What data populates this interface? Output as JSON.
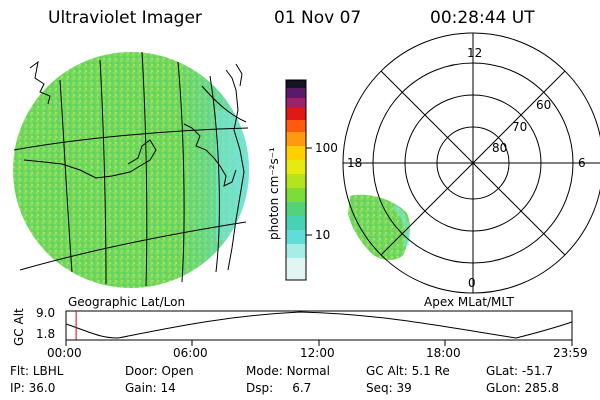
{
  "header": {
    "instrument": "Ultraviolet Imager",
    "date": "01 Nov 07",
    "time": "00:28:44 UT"
  },
  "colorbar": {
    "unit_label": "photon cm⁻²s⁻¹",
    "tick_labels": [
      "100",
      "10"
    ]
  },
  "geo_map": {
    "label": "Geographic Lat/Lon"
  },
  "polar_plot": {
    "label": "Apex MLat/MLT",
    "hour_labels": [
      "12",
      "18",
      "6",
      "0"
    ],
    "lat_labels": [
      "60",
      "70",
      "80"
    ]
  },
  "altitude_plot": {
    "ylabel": "GC Alt",
    "ytick_labels": [
      "9.0",
      "1.8"
    ],
    "xtick_labels": [
      "00:00",
      "06:00",
      "12:00",
      "18:00",
      "23:59"
    ],
    "current_time_fraction": 0.02
  },
  "info": {
    "row1": [
      {
        "label": "Flt:",
        "value": "LBHL"
      },
      {
        "label": "Door:",
        "value": "Open"
      },
      {
        "label": "Mode:",
        "value": "Normal"
      },
      {
        "label": "GC Alt:",
        "value": "5.1 Re"
      },
      {
        "label": "GLat:",
        "value": "-51.7"
      }
    ],
    "row2": [
      {
        "label": "IP:",
        "value": "36.0"
      },
      {
        "label": "Gain:",
        "value": "14"
      },
      {
        "label": "Dsp:",
        "value": "6.7"
      },
      {
        "label": "Seq:",
        "value": "39"
      },
      {
        "label": "GLon:",
        "value": "285.8"
      }
    ]
  },
  "colors": {
    "aurora_fill": "#6ed85a",
    "aurora_edge": "#52d6c8"
  }
}
